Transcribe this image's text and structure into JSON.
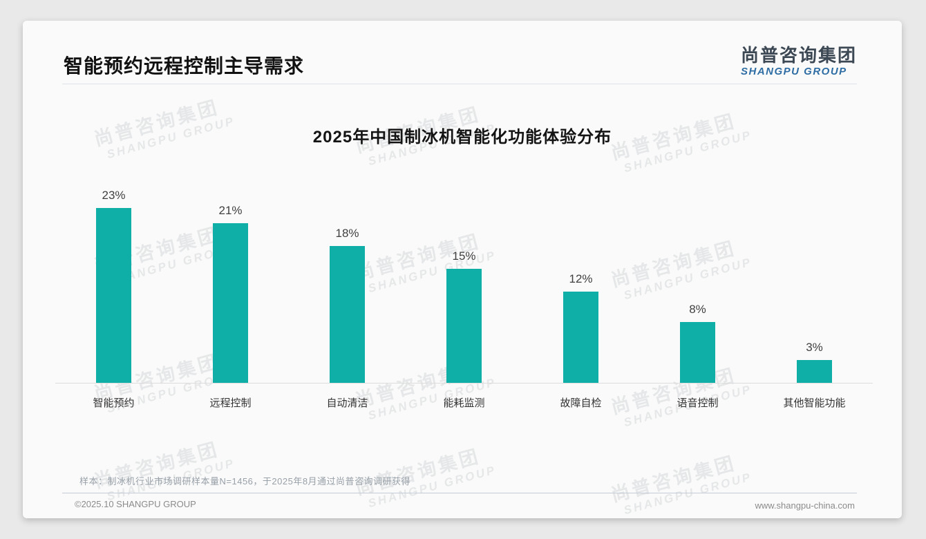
{
  "page": {
    "background_color": "#e9e9e9",
    "card_color": "#fafafa"
  },
  "header": {
    "title": "智能预约远程控制主导需求"
  },
  "logo": {
    "cn": "尚普咨询集团",
    "en": "SHANGPU GROUP",
    "cn_color": "#3d4855",
    "en_color": "#2e6da4"
  },
  "watermark": {
    "cn": "尚普咨询集团",
    "en": "SHANGPU GROUP"
  },
  "chart_data": {
    "type": "bar",
    "title": "2025年中国制冰机智能化功能体验分布",
    "categories": [
      "智能预约",
      "远程控制",
      "自动清洁",
      "能耗监测",
      "故障自检",
      "语音控制",
      "其他智能功能"
    ],
    "values": [
      23,
      21,
      18,
      15,
      12,
      8,
      3
    ],
    "unit": "%",
    "bar_color": "#0faea6",
    "value_label_color": "#3f3f3f",
    "xlabel": "",
    "ylabel": "",
    "ylim": [
      0,
      25
    ],
    "grid": false,
    "legend": false,
    "value_label_position": "above-bar"
  },
  "note": {
    "text": "样本：制冰机行业市场调研样本量N=1456，于2025年8月通过尚普咨询调研获得"
  },
  "footer": {
    "left": "©2025.10 SHANGPU GROUP",
    "right": "www.shangpu-china.com"
  }
}
